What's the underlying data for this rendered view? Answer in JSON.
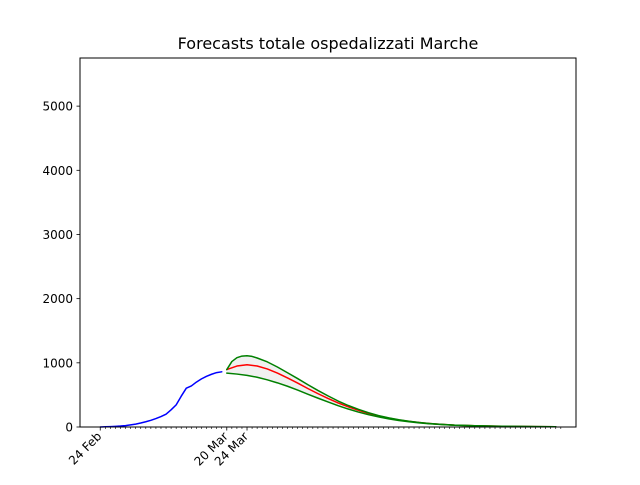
{
  "chart_data": {
    "type": "line",
    "title": "Forecasts totale ospedalizzati Marche",
    "xlabel": "",
    "ylabel": "",
    "ylim": [
      0,
      5750
    ],
    "xlim": [
      "2020-02-20",
      "2020-05-28"
    ],
    "y_ticks": [
      0,
      1000,
      2000,
      3000,
      4000,
      5000
    ],
    "x_tick_labels": [
      {
        "date": "2020-02-24",
        "label": "24 Feb"
      },
      {
        "date": "2020-03-20",
        "label": "20 Mar"
      },
      {
        "date": "2020-03-24",
        "label": "24 Mar"
      }
    ],
    "minor_ticks": "daily",
    "grid": false,
    "series": [
      {
        "color": "#0000ff",
        "x": [
          "2020-02-24",
          "2020-02-25",
          "2020-02-26",
          "2020-02-27",
          "2020-02-28",
          "2020-02-29",
          "2020-03-01",
          "2020-03-02",
          "2020-03-03",
          "2020-03-04",
          "2020-03-05",
          "2020-03-06",
          "2020-03-07",
          "2020-03-08",
          "2020-03-09",
          "2020-03-10",
          "2020-03-11",
          "2020-03-12",
          "2020-03-13",
          "2020-03-14",
          "2020-03-15",
          "2020-03-16",
          "2020-03-17",
          "2020-03-18",
          "2020-03-19"
        ],
        "y": [
          0,
          3,
          6,
          10,
          15,
          22,
          33,
          45,
          62,
          82,
          104,
          131,
          163,
          200,
          268,
          345,
          480,
          605,
          640,
          700,
          750,
          790,
          822,
          848,
          860
        ]
      },
      {
        "color": "#ff0000",
        "x": [
          "2020-03-20",
          "2020-03-22",
          "2020-03-24",
          "2020-03-26",
          "2020-03-28",
          "2020-03-30",
          "2020-04-01",
          "2020-04-03",
          "2020-04-05",
          "2020-04-07",
          "2020-04-09",
          "2020-04-11",
          "2020-04-13",
          "2020-04-15",
          "2020-04-17",
          "2020-04-19",
          "2020-04-21",
          "2020-04-23",
          "2020-04-25",
          "2020-04-27",
          "2020-04-29",
          "2020-05-01",
          "2020-05-04",
          "2020-05-08",
          "2020-05-12",
          "2020-05-16",
          "2020-05-20",
          "2020-05-24"
        ],
        "y": [
          895,
          950,
          970,
          950,
          905,
          840,
          765,
          685,
          600,
          520,
          445,
          375,
          315,
          260,
          212,
          172,
          138,
          110,
          88,
          70,
          55,
          43,
          30,
          20,
          13,
          9,
          6,
          4
        ]
      },
      {
        "color": "#008000",
        "x": [
          "2020-03-20",
          "2020-03-21",
          "2020-03-22",
          "2020-03-23",
          "2020-03-24",
          "2020-03-25",
          "2020-03-26",
          "2020-03-28",
          "2020-03-30",
          "2020-04-01",
          "2020-04-03",
          "2020-04-05",
          "2020-04-07",
          "2020-04-09",
          "2020-04-11",
          "2020-04-13",
          "2020-04-15",
          "2020-04-17",
          "2020-04-19",
          "2020-04-21",
          "2020-04-23",
          "2020-04-25",
          "2020-04-27",
          "2020-04-29",
          "2020-05-01",
          "2020-05-04",
          "2020-05-08",
          "2020-05-12",
          "2020-05-16",
          "2020-05-20",
          "2020-05-24"
        ],
        "y": [
          895,
          1020,
          1080,
          1105,
          1110,
          1100,
          1075,
          1015,
          935,
          845,
          755,
          660,
          570,
          485,
          405,
          335,
          275,
          222,
          178,
          142,
          113,
          89,
          70,
          55,
          43,
          30,
          20,
          13,
          9,
          6,
          4
        ]
      },
      {
        "color": "#008000",
        "x": [
          "2020-03-20",
          "2020-03-22",
          "2020-03-24",
          "2020-03-26",
          "2020-03-28",
          "2020-03-30",
          "2020-04-01",
          "2020-04-03",
          "2020-04-05",
          "2020-04-07",
          "2020-04-09",
          "2020-04-11",
          "2020-04-13",
          "2020-04-15",
          "2020-04-17",
          "2020-04-19",
          "2020-04-21",
          "2020-04-23",
          "2020-04-25",
          "2020-04-27",
          "2020-04-29",
          "2020-05-01",
          "2020-05-04",
          "2020-05-08",
          "2020-05-12",
          "2020-05-16",
          "2020-05-20",
          "2020-05-24"
        ],
        "y": [
          840,
          825,
          805,
          775,
          735,
          688,
          635,
          575,
          512,
          450,
          390,
          332,
          280,
          233,
          192,
          157,
          127,
          102,
          82,
          65,
          51,
          40,
          28,
          19,
          12,
          8,
          5,
          3
        ]
      }
    ]
  }
}
